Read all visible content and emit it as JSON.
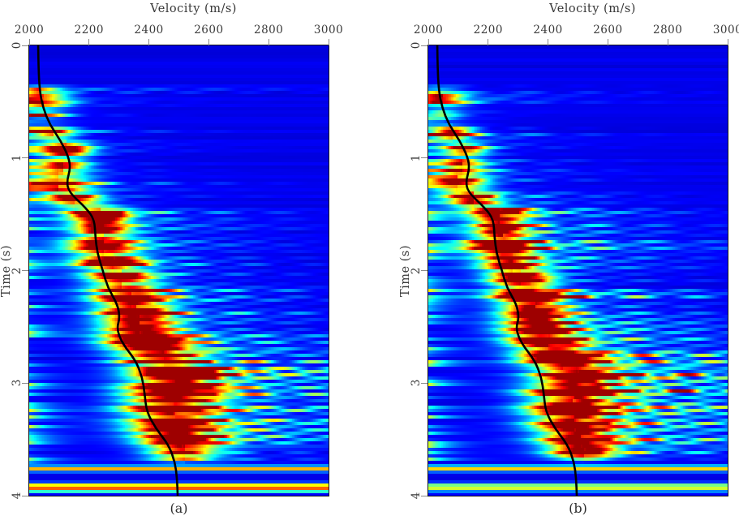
{
  "chart_data": {
    "type": "heatmap",
    "title": "Velocity (m/s)",
    "xlabel": "Velocity (m/s)",
    "ylabel": "Time (s)",
    "xlim": [
      2000,
      3000
    ],
    "ylim": [
      0,
      4
    ],
    "xticks": [
      2000,
      2200,
      2400,
      2600,
      2800,
      3000
    ],
    "yticks": [
      0,
      1,
      2,
      3,
      4
    ],
    "colormap": "jet",
    "grid": false,
    "legend": "none",
    "panels": [
      {
        "label": "(a)",
        "render": {
          "seed": 7,
          "amp": 1.0,
          "tail": 1.0,
          "vws": 1.0
        }
      },
      {
        "label": "(b)",
        "render": {
          "seed": 131,
          "amp": 0.96,
          "tail": 1.3,
          "vws": 0.92
        }
      }
    ],
    "events_format": [
      "t",
      "v",
      "a",
      "tw",
      "vw",
      "tail_len",
      "tail_amp"
    ],
    "semblance_events": [
      [
        0.42,
        2040,
        0.5,
        0.03,
        55,
        600,
        0.3
      ],
      [
        0.5,
        2050,
        0.55,
        0.035,
        60,
        260,
        0.35
      ],
      [
        0.62,
        2055,
        0.32,
        0.025,
        45,
        160,
        0.3
      ],
      [
        0.78,
        2080,
        0.65,
        0.035,
        50,
        200,
        0.35
      ],
      [
        0.93,
        2125,
        0.88,
        0.04,
        55,
        220,
        0.35
      ],
      [
        1.07,
        2115,
        0.84,
        0.038,
        55,
        220,
        0.35
      ],
      [
        1.22,
        2100,
        0.97,
        0.045,
        70,
        240,
        0.35
      ],
      [
        1.36,
        2150,
        0.8,
        0.04,
        60,
        260,
        0.4
      ],
      [
        1.5,
        2240,
        0.93,
        0.042,
        65,
        280,
        0.45
      ],
      [
        1.63,
        2250,
        0.86,
        0.04,
        60,
        280,
        0.45
      ],
      [
        1.77,
        2250,
        0.96,
        0.048,
        80,
        300,
        0.5
      ],
      [
        1.92,
        2280,
        0.89,
        0.045,
        75,
        300,
        0.5
      ],
      [
        2.07,
        2310,
        0.91,
        0.045,
        75,
        320,
        0.5
      ],
      [
        2.22,
        2340,
        0.94,
        0.048,
        80,
        320,
        0.55
      ],
      [
        2.36,
        2360,
        0.91,
        0.045,
        80,
        340,
        0.55
      ],
      [
        2.5,
        2370,
        0.94,
        0.048,
        85,
        360,
        0.6
      ],
      [
        2.64,
        2400,
        0.96,
        0.05,
        90,
        380,
        0.65
      ],
      [
        2.78,
        2450,
        0.96,
        0.05,
        95,
        450,
        0.75
      ],
      [
        2.92,
        2500,
        0.93,
        0.045,
        95,
        500,
        0.85
      ],
      [
        3.06,
        2490,
        1.0,
        0.055,
        110,
        500,
        0.85
      ],
      [
        3.21,
        2480,
        0.96,
        0.05,
        105,
        470,
        0.8
      ],
      [
        3.36,
        2490,
        0.93,
        0.05,
        100,
        440,
        0.7
      ],
      [
        3.5,
        2510,
        0.86,
        0.045,
        90,
        400,
        0.6
      ],
      [
        3.62,
        2520,
        0.72,
        0.04,
        80,
        360,
        0.5
      ],
      [
        3.76,
        2500,
        0.42,
        0.022,
        4000,
        0,
        0
      ],
      [
        3.93,
        2500,
        0.6,
        0.024,
        4000,
        0,
        0
      ]
    ],
    "edge_noise": {
      "tmin": 0.38,
      "tmax": 3.72,
      "amp": 0.55,
      "vdecay": 70
    },
    "fan": {
      "slope": 4000,
      "period": 200
    },
    "velocity_picks": [
      [
        0.0,
        2030
      ],
      [
        0.2,
        2031
      ],
      [
        0.4,
        2035
      ],
      [
        0.55,
        2046
      ],
      [
        0.7,
        2068
      ],
      [
        0.85,
        2106
      ],
      [
        1.0,
        2133
      ],
      [
        1.1,
        2137
      ],
      [
        1.2,
        2126
      ],
      [
        1.3,
        2131
      ],
      [
        1.45,
        2192
      ],
      [
        1.55,
        2218
      ],
      [
        1.7,
        2221
      ],
      [
        1.85,
        2228
      ],
      [
        2.0,
        2246
      ],
      [
        2.15,
        2262
      ],
      [
        2.3,
        2295
      ],
      [
        2.42,
        2303
      ],
      [
        2.52,
        2292
      ],
      [
        2.65,
        2312
      ],
      [
        2.8,
        2356
      ],
      [
        2.95,
        2378
      ],
      [
        3.1,
        2386
      ],
      [
        3.25,
        2392
      ],
      [
        3.4,
        2422
      ],
      [
        3.55,
        2466
      ],
      [
        3.7,
        2487
      ],
      [
        3.85,
        2494
      ],
      [
        4.0,
        2496
      ]
    ]
  }
}
